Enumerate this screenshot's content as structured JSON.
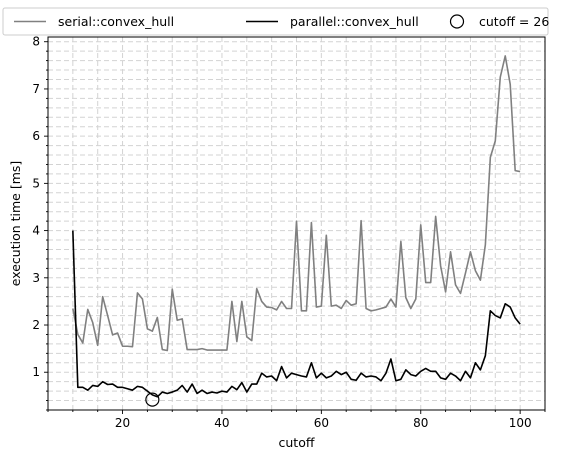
{
  "chart_data": {
    "type": "line",
    "xlabel": "cutoff",
    "ylabel": "execution time [ms]",
    "xlim": [
      5,
      105
    ],
    "ylim": [
      0.2,
      8.1
    ],
    "x_ticks": [
      20,
      40,
      60,
      80,
      100
    ],
    "y_ticks": [
      1,
      2,
      3,
      4,
      5,
      6,
      7,
      8
    ],
    "grid": true,
    "legend_placement": "top",
    "series": [
      {
        "name": "serial::convex_hull",
        "color": "#808080",
        "x": [
          10,
          11,
          12,
          13,
          14,
          15,
          16,
          17,
          18,
          19,
          20,
          21,
          22,
          23,
          24,
          25,
          26,
          27,
          28,
          29,
          30,
          31,
          32,
          33,
          34,
          35,
          36,
          37,
          38,
          39,
          40,
          41,
          42,
          43,
          44,
          45,
          46,
          47,
          48,
          49,
          50,
          51,
          52,
          53,
          54,
          55,
          56,
          57,
          58,
          59,
          60,
          61,
          62,
          63,
          64,
          65,
          66,
          67,
          68,
          69,
          70,
          71,
          72,
          73,
          74,
          75,
          76,
          77,
          78,
          79,
          80,
          81,
          82,
          83,
          84,
          85,
          86,
          87,
          88,
          89,
          90,
          91,
          92,
          93,
          94,
          95,
          96,
          97,
          98,
          99,
          100
        ],
        "y": [
          2.35,
          1.8,
          1.62,
          2.33,
          2.05,
          1.57,
          2.6,
          2.2,
          1.79,
          1.83,
          1.55,
          1.55,
          1.54,
          2.68,
          2.55,
          1.92,
          1.87,
          2.16,
          1.48,
          1.46,
          2.76,
          2.1,
          2.13,
          1.48,
          1.48,
          1.48,
          1.5,
          1.47,
          1.47,
          1.47,
          1.47,
          1.47,
          2.5,
          1.65,
          2.5,
          1.75,
          1.67,
          2.77,
          2.5,
          2.38,
          2.37,
          2.32,
          2.5,
          2.35,
          2.35,
          4.2,
          2.3,
          2.3,
          4.17,
          2.38,
          2.4,
          3.9,
          2.4,
          2.42,
          2.35,
          2.52,
          2.42,
          2.45,
          4.21,
          2.35,
          2.3,
          2.32,
          2.35,
          2.38,
          2.55,
          2.38,
          3.77,
          2.58,
          2.35,
          2.55,
          4.12,
          2.9,
          2.9,
          4.3,
          3.25,
          2.7,
          3.55,
          2.85,
          2.67,
          3.1,
          3.55,
          3.15,
          2.95,
          3.7,
          5.55,
          5.9,
          7.25,
          7.7,
          7.1,
          5.27,
          5.25
        ]
      },
      {
        "name": "parallel::convex_hull",
        "color": "#000000",
        "x": [
          10,
          11,
          12,
          13,
          14,
          15,
          16,
          17,
          18,
          19,
          20,
          21,
          22,
          23,
          24,
          25,
          26,
          27,
          28,
          29,
          30,
          31,
          32,
          33,
          34,
          35,
          36,
          37,
          38,
          39,
          40,
          41,
          42,
          43,
          44,
          45,
          46,
          47,
          48,
          49,
          50,
          51,
          52,
          53,
          54,
          55,
          56,
          57,
          58,
          59,
          60,
          61,
          62,
          63,
          64,
          65,
          66,
          67,
          68,
          69,
          70,
          71,
          72,
          73,
          74,
          75,
          76,
          77,
          78,
          79,
          80,
          81,
          82,
          83,
          84,
          85,
          86,
          87,
          88,
          89,
          90,
          91,
          92,
          93,
          94,
          95,
          96,
          97,
          98,
          99,
          100
        ],
        "y": [
          4.0,
          0.68,
          0.68,
          0.62,
          0.72,
          0.7,
          0.8,
          0.74,
          0.75,
          0.68,
          0.68,
          0.65,
          0.62,
          0.7,
          0.68,
          0.6,
          0.52,
          0.48,
          0.58,
          0.55,
          0.58,
          0.62,
          0.72,
          0.58,
          0.75,
          0.55,
          0.62,
          0.55,
          0.58,
          0.56,
          0.6,
          0.58,
          0.7,
          0.63,
          0.78,
          0.58,
          0.75,
          0.75,
          0.98,
          0.9,
          0.92,
          0.82,
          1.12,
          0.88,
          0.98,
          0.95,
          0.92,
          0.9,
          1.2,
          0.88,
          0.98,
          0.88,
          0.92,
          1.02,
          0.95,
          1.0,
          0.85,
          0.83,
          0.98,
          0.9,
          0.92,
          0.9,
          0.82,
          0.98,
          1.28,
          0.82,
          0.85,
          1.05,
          0.95,
          0.92,
          1.02,
          1.08,
          1.02,
          1.02,
          0.88,
          0.85,
          0.98,
          0.92,
          0.82,
          1.02,
          0.88,
          1.2,
          1.05,
          1.35,
          2.3,
          2.2,
          2.15,
          2.45,
          2.38,
          2.15,
          2.02
        ]
      }
    ],
    "marker": {
      "name": "cutoff = 26",
      "x": 26,
      "y": 0.42
    }
  }
}
